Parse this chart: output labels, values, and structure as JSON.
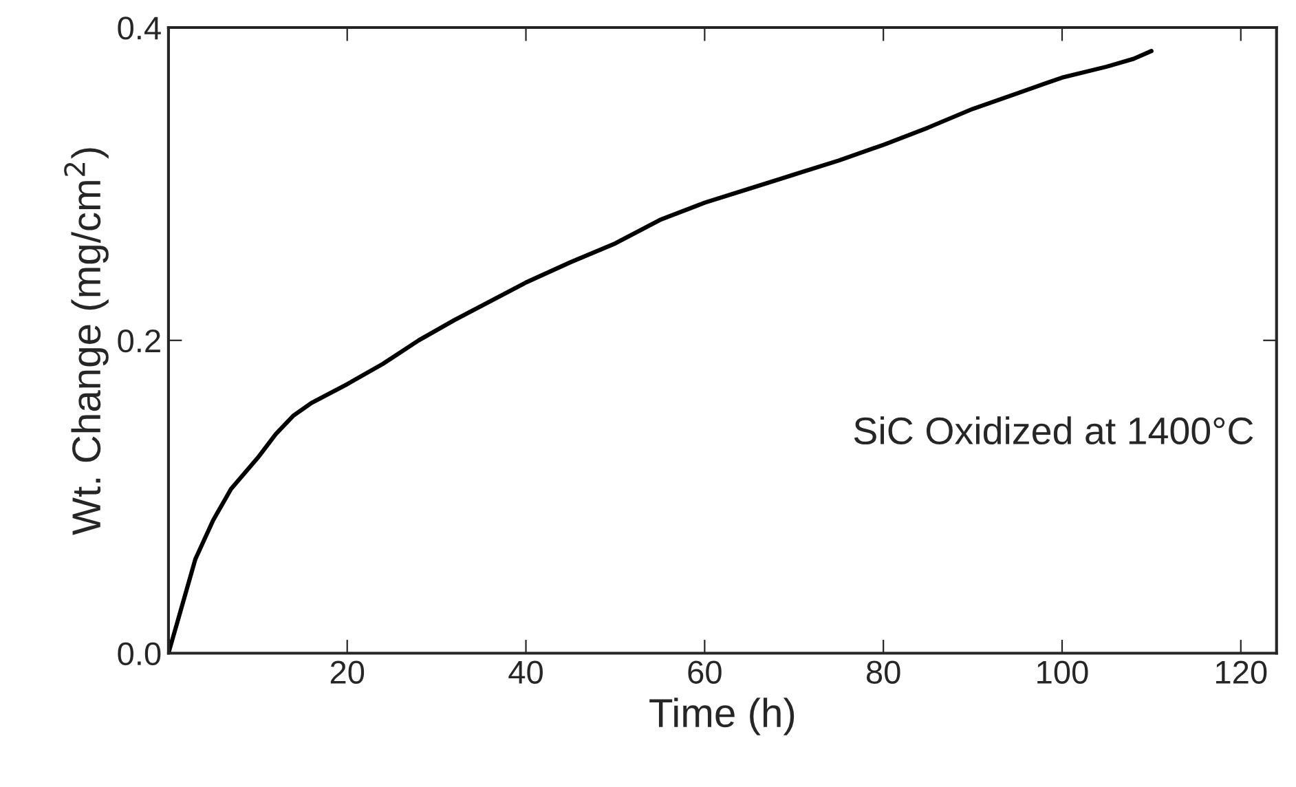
{
  "chart_data": {
    "type": "line",
    "xlabel": "Time (h)",
    "ylabel": "Wt. Change (mg/cm$^{2}$)",
    "annotations": [
      "SiC Oxidized at 1400°C"
    ],
    "xlim": [
      0,
      124
    ],
    "xticks": [
      20,
      40,
      60,
      80,
      100,
      120
    ],
    "ylim": [
      0,
      0.4
    ],
    "yticks": [
      {
        "value": 0,
        "label": "0.0"
      },
      {
        "value": 0.2,
        "label": "0.2"
      },
      {
        "value": 0.4,
        "label": "0.4"
      }
    ],
    "grid": false,
    "marker": "none",
    "line_style": "solid",
    "series": [
      {
        "color": "#000000",
        "x": [
          0,
          1,
          2,
          3,
          5,
          7,
          10,
          12,
          14,
          16,
          20,
          24,
          28,
          32,
          36,
          40,
          45,
          50,
          55,
          60,
          65,
          70,
          75,
          80,
          85,
          90,
          95,
          100,
          105,
          108,
          110
        ],
        "values": [
          0,
          0.02,
          0.04,
          0.06,
          0.085,
          0.105,
          0.125,
          0.14,
          0.152,
          0.16,
          0.172,
          0.185,
          0.2,
          0.213,
          0.225,
          0.237,
          0.25,
          0.262,
          0.277,
          0.288,
          0.297,
          0.306,
          0.315,
          0.325,
          0.336,
          0.348,
          0.358,
          0.368,
          0.375,
          0.38,
          0.385
        ]
      }
    ]
  }
}
